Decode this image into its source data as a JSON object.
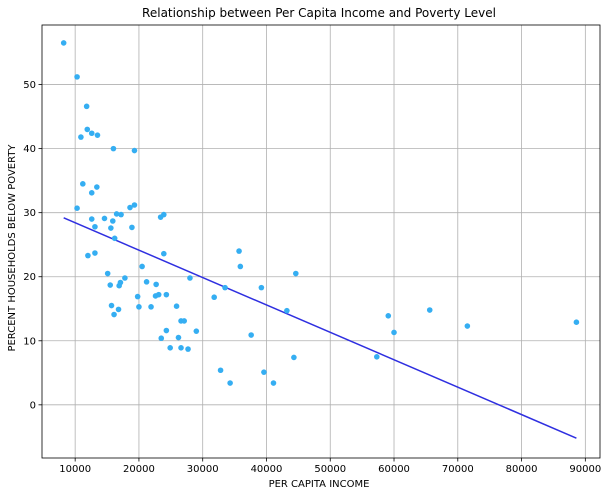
{
  "chart_data": {
    "type": "scatter",
    "title": "Relationship between Per Capita Income and Poverty Level",
    "xlabel": "PER CAPITA INCOME",
    "ylabel": "PERCENT HOUSEHOLDS BELOW POVERTY",
    "xlim": [
      4800,
      92300
    ],
    "ylim": [
      -8.3,
      59.3
    ],
    "xticks": [
      10000,
      20000,
      30000,
      40000,
      50000,
      60000,
      70000,
      80000,
      90000
    ],
    "yticks": [
      0,
      10,
      20,
      30,
      40,
      50
    ],
    "grid": true,
    "colors": {
      "points": "#35aef2",
      "trend": "#2f2fe0"
    },
    "points": [
      {
        "x": 8200,
        "y": 56.5
      },
      {
        "x": 10300,
        "y": 51.2
      },
      {
        "x": 11800,
        "y": 46.6
      },
      {
        "x": 11900,
        "y": 43.0
      },
      {
        "x": 12600,
        "y": 42.4
      },
      {
        "x": 13500,
        "y": 42.1
      },
      {
        "x": 10900,
        "y": 41.8
      },
      {
        "x": 16000,
        "y": 40.0
      },
      {
        "x": 19300,
        "y": 39.7
      },
      {
        "x": 11200,
        "y": 34.5
      },
      {
        "x": 13400,
        "y": 34.0
      },
      {
        "x": 12600,
        "y": 33.1
      },
      {
        "x": 19300,
        "y": 31.2
      },
      {
        "x": 18600,
        "y": 30.8
      },
      {
        "x": 10300,
        "y": 30.7
      },
      {
        "x": 16500,
        "y": 29.8
      },
      {
        "x": 17200,
        "y": 29.7
      },
      {
        "x": 23900,
        "y": 29.7
      },
      {
        "x": 23400,
        "y": 29.3
      },
      {
        "x": 14600,
        "y": 29.1
      },
      {
        "x": 12600,
        "y": 29.0
      },
      {
        "x": 15900,
        "y": 28.7
      },
      {
        "x": 13100,
        "y": 27.8
      },
      {
        "x": 18900,
        "y": 27.7
      },
      {
        "x": 15600,
        "y": 27.6
      },
      {
        "x": 16200,
        "y": 26.0
      },
      {
        "x": 35700,
        "y": 24.0
      },
      {
        "x": 13100,
        "y": 23.7
      },
      {
        "x": 23900,
        "y": 23.6
      },
      {
        "x": 12000,
        "y": 23.3
      },
      {
        "x": 35900,
        "y": 21.6
      },
      {
        "x": 20500,
        "y": 21.6
      },
      {
        "x": 15100,
        "y": 20.5
      },
      {
        "x": 44600,
        "y": 20.5
      },
      {
        "x": 17800,
        "y": 19.8
      },
      {
        "x": 28000,
        "y": 19.8
      },
      {
        "x": 21200,
        "y": 19.2
      },
      {
        "x": 17100,
        "y": 19.1
      },
      {
        "x": 22700,
        "y": 18.8
      },
      {
        "x": 15500,
        "y": 18.7
      },
      {
        "x": 16900,
        "y": 18.6
      },
      {
        "x": 33500,
        "y": 18.3
      },
      {
        "x": 39200,
        "y": 18.3
      },
      {
        "x": 24300,
        "y": 17.2
      },
      {
        "x": 23100,
        "y": 17.2
      },
      {
        "x": 22600,
        "y": 17.0
      },
      {
        "x": 19800,
        "y": 16.9
      },
      {
        "x": 31800,
        "y": 16.8
      },
      {
        "x": 15700,
        "y": 15.5
      },
      {
        "x": 25900,
        "y": 15.4
      },
      {
        "x": 20000,
        "y": 15.3
      },
      {
        "x": 21900,
        "y": 15.3
      },
      {
        "x": 16800,
        "y": 14.9
      },
      {
        "x": 43200,
        "y": 14.7
      },
      {
        "x": 65600,
        "y": 14.8
      },
      {
        "x": 16100,
        "y": 14.1
      },
      {
        "x": 59100,
        "y": 13.9
      },
      {
        "x": 26600,
        "y": 13.1
      },
      {
        "x": 27100,
        "y": 13.1
      },
      {
        "x": 88600,
        "y": 12.9
      },
      {
        "x": 71500,
        "y": 12.3
      },
      {
        "x": 24300,
        "y": 11.6
      },
      {
        "x": 29000,
        "y": 11.5
      },
      {
        "x": 60000,
        "y": 11.3
      },
      {
        "x": 37600,
        "y": 10.9
      },
      {
        "x": 26200,
        "y": 10.5
      },
      {
        "x": 23500,
        "y": 10.4
      },
      {
        "x": 24900,
        "y": 8.9
      },
      {
        "x": 26600,
        "y": 8.9
      },
      {
        "x": 27700,
        "y": 8.7
      },
      {
        "x": 57300,
        "y": 7.5
      },
      {
        "x": 44300,
        "y": 7.4
      },
      {
        "x": 32800,
        "y": 5.4
      },
      {
        "x": 39600,
        "y": 5.1
      },
      {
        "x": 34300,
        "y": 3.4
      },
      {
        "x": 41100,
        "y": 3.4
      }
    ],
    "trend_line": {
      "x": [
        8200,
        88600
      ],
      "y": [
        29.2,
        -5.2
      ]
    }
  }
}
